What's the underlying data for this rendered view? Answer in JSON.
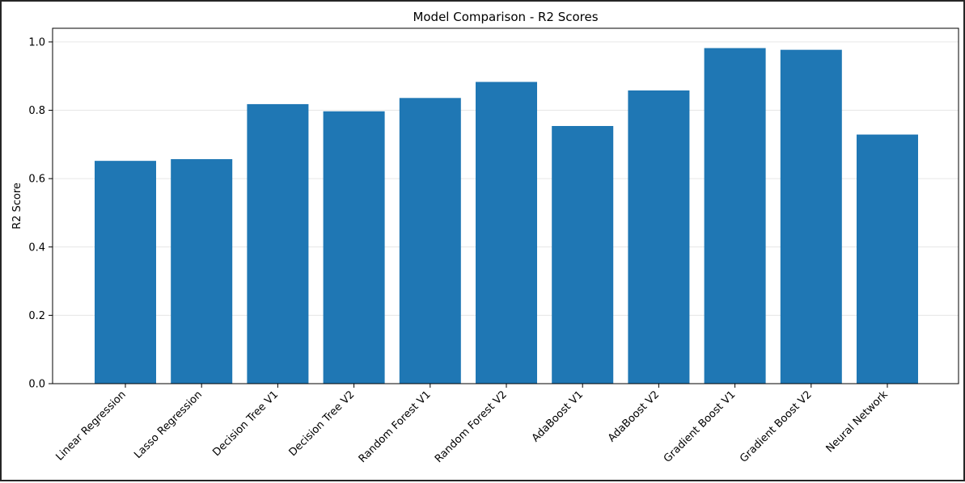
{
  "chart_data": {
    "type": "bar",
    "title": "Model Comparison - R2 Scores",
    "xlabel": "",
    "ylabel": "R2 Score",
    "categories": [
      "Linear Regression",
      "Lasso Regression",
      "Decision Tree V1",
      "Decision Tree V2",
      "Random Forest V1",
      "Random Forest V2",
      "AdaBoost V1",
      "AdaBoost V2",
      "Gradient Boost V1",
      "Gradient Boost V2",
      "Neural Network"
    ],
    "values": [
      0.652,
      0.657,
      0.818,
      0.797,
      0.836,
      0.883,
      0.754,
      0.858,
      0.982,
      0.977,
      0.729
    ],
    "ylim": [
      0,
      1.04
    ],
    "yticks": [
      "0.0",
      "0.2",
      "0.4",
      "0.6",
      "0.8",
      "1.0"
    ],
    "grid": "y-axis, light",
    "bar_color": "#1f77b4"
  }
}
